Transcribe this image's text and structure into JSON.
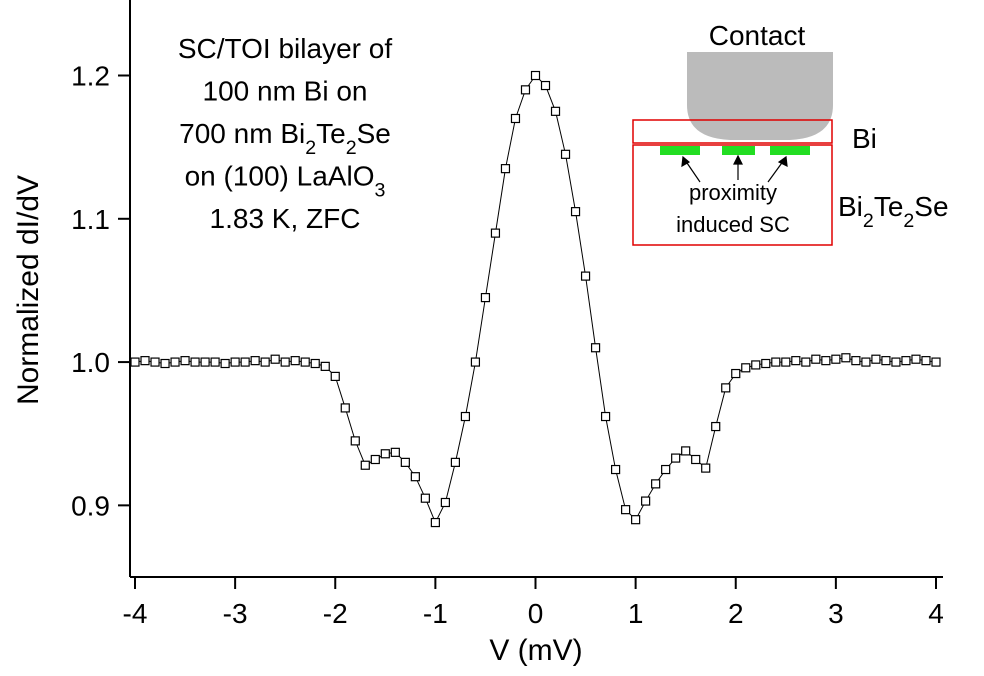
{
  "chart_data": {
    "type": "scatter",
    "x_label": "V (mV)",
    "y_label": "Normalized dI/dV",
    "xlim": [
      -4.05,
      4.07
    ],
    "ylim": [
      0.85,
      1.252
    ],
    "xticks": [
      -4,
      -3,
      -2,
      -1,
      0,
      1,
      2,
      3,
      4
    ],
    "yticks": [
      0.9,
      {
        "value": 1,
        "label": "1.0"
      },
      1.1,
      1.2
    ],
    "annotation": [
      [
        "SC/TOI bilayer of"
      ],
      [
        "100 nm Bi on"
      ],
      [
        "700 nm Bi",
        {
          "sub": "2"
        },
        "Te",
        {
          "sub": "2"
        },
        "Se"
      ],
      [
        "on (100) LaAlO",
        {
          "sub": "3"
        }
      ],
      [
        "1.83 K,  ZFC"
      ]
    ],
    "inset": {
      "contact": "Contact",
      "top_layer": "Bi",
      "bottom_layer": [
        "Bi",
        {
          "sub": "2"
        },
        "Te",
        {
          "sub": "2"
        },
        "Se"
      ],
      "caption": [
        "proximity",
        "induced SC"
      ]
    },
    "series": [
      {
        "color": "#000000",
        "x": [
          -4,
          -3.9,
          -3.8,
          -3.7,
          -3.6,
          -3.5,
          -3.4,
          -3.3,
          -3.2,
          -3.1,
          -3,
          -2.9,
          -2.8,
          -2.7,
          -2.6,
          -2.5,
          -2.4,
          -2.3,
          -2.2,
          -2.1,
          -2,
          -1.9,
          -1.8,
          -1.7,
          -1.6,
          -1.5,
          -1.4,
          -1.3,
          -1.2,
          -1.1,
          -1,
          -0.9,
          -0.8,
          -0.7,
          -0.6,
          -0.5,
          -0.4,
          -0.3,
          -0.2,
          -0.1,
          0,
          0.1,
          0.2,
          0.3,
          0.4,
          0.5,
          0.6,
          0.7,
          0.8,
          0.9,
          1,
          1.1,
          1.2,
          1.3,
          1.4,
          1.5,
          1.6,
          1.7,
          1.8,
          1.9,
          2,
          2.1,
          2.2,
          2.3,
          2.4,
          2.5,
          2.6,
          2.7,
          2.8,
          2.9,
          3,
          3.1,
          3.2,
          3.3,
          3.4,
          3.5,
          3.6,
          3.7,
          3.8,
          3.9,
          4
        ],
        "values": [
          1,
          1.001,
          1,
          0.999,
          1,
          1.001,
          1,
          1,
          1,
          0.999,
          1,
          1,
          1.001,
          1,
          1.002,
          1,
          1.001,
          1,
          0.999,
          0.997,
          0.99,
          0.968,
          0.945,
          0.928,
          0.932,
          0.936,
          0.937,
          0.93,
          0.92,
          0.905,
          0.888,
          0.902,
          0.93,
          0.962,
          1,
          1.045,
          1.09,
          1.135,
          1.17,
          1.19,
          1.2,
          1.193,
          1.175,
          1.145,
          1.105,
          1.06,
          1.01,
          0.962,
          0.925,
          0.897,
          0.89,
          0.903,
          0.915,
          0.925,
          0.933,
          0.938,
          0.932,
          0.926,
          0.955,
          0.982,
          0.992,
          0.996,
          0.998,
          0.999,
          1,
          1,
          1.001,
          1,
          1.002,
          1.001,
          1.002,
          1.003,
          1.001,
          1,
          1.002,
          1.001,
          1,
          1.001,
          1.002,
          1.001,
          1
        ]
      }
    ]
  }
}
